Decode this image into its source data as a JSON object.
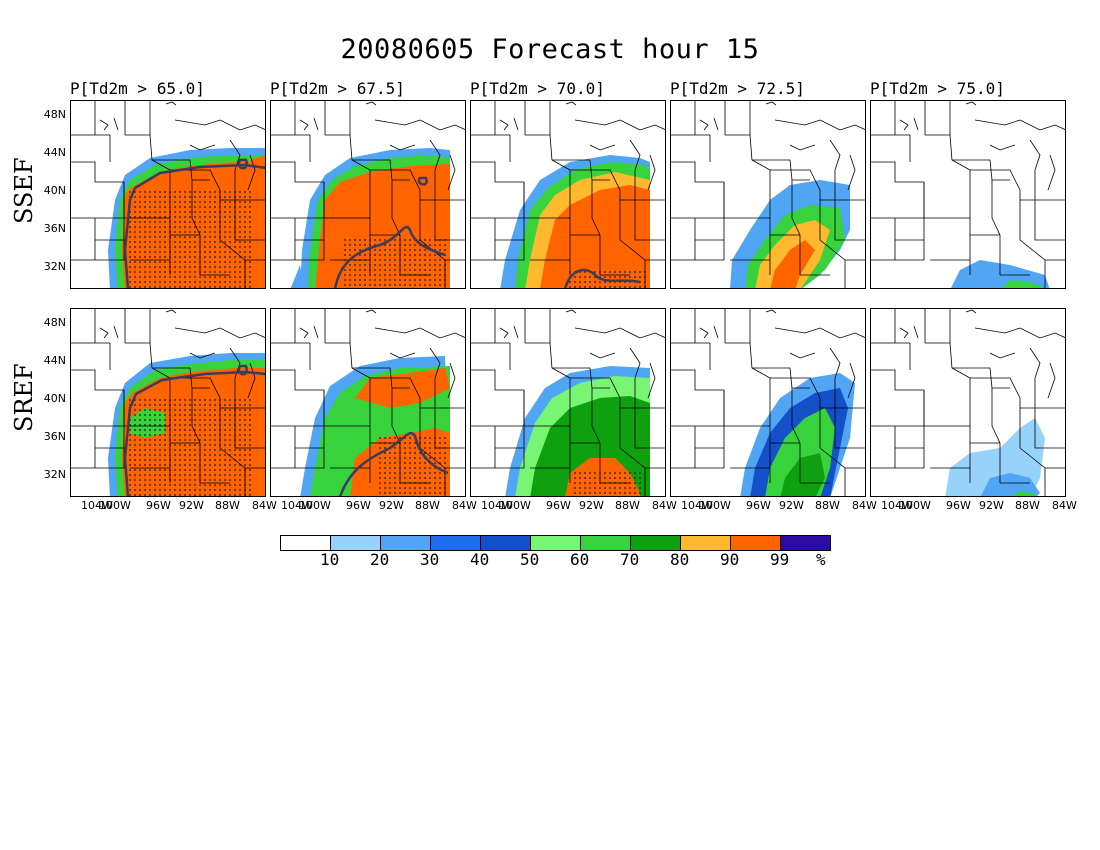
{
  "title": "20080605 Forecast hour 15",
  "columns": [
    {
      "label": "P[Td2m > 65.0]"
    },
    {
      "label": "P[Td2m > 67.5]"
    },
    {
      "label": "P[Td2m > 70.0]"
    },
    {
      "label": "P[Td2m > 72.5]"
    },
    {
      "label": "P[Td2m > 75.0]"
    }
  ],
  "rows": [
    {
      "label": "SSEF"
    },
    {
      "label": "SREF"
    }
  ],
  "lat_ticks": [
    "48N",
    "44N",
    "40N",
    "36N",
    "32N"
  ],
  "lon_ticks": [
    "104W",
    "100W",
    "96W",
    "92W",
    "88W",
    "84W"
  ],
  "colorbar": {
    "labels": [
      "10",
      "20",
      "30",
      "40",
      "50",
      "60",
      "70",
      "80",
      "90",
      "99"
    ],
    "unit": "%",
    "colors": [
      "#ffffff",
      "#96d2fa",
      "#50a5f5",
      "#1e6eeb",
      "#1450c8",
      "#78f573",
      "#37d23c",
      "#0fa00f",
      "#ffb92e",
      "#ff6400",
      "#2a0da0"
    ]
  },
  "map_colors": {
    "outside_domain": "#ffffff",
    "state_lines": "#000000",
    "contour": "#3c3c5a",
    "stipple": "#1a1a1a"
  }
}
